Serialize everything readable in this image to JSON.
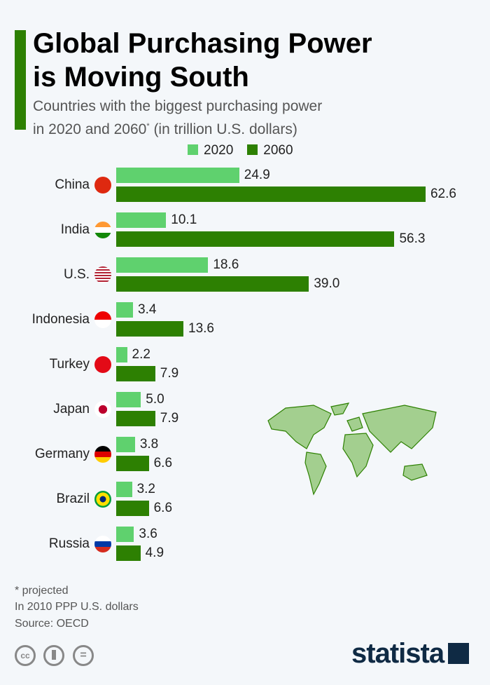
{
  "title_line1": "Global Purchasing Power",
  "title_line2": "is Moving South",
  "subtitle_line1": "Countries with the biggest purchasing power",
  "subtitle_line2a": "in 2020 and 2060",
  "subtitle_sup": "*",
  "subtitle_line2b": " (in trillion U.S. dollars)",
  "colors": {
    "s2020": "#5fd16e",
    "s2060": "#2d8002",
    "accent": "#2d8002"
  },
  "chart_data": {
    "type": "bar",
    "orientation": "horizontal",
    "categories": [
      "China",
      "India",
      "U.S.",
      "Indonesia",
      "Turkey",
      "Japan",
      "Germany",
      "Brazil",
      "Russia"
    ],
    "series": [
      {
        "name": "2020",
        "values": [
          24.9,
          10.1,
          18.6,
          3.4,
          2.2,
          5.0,
          3.8,
          3.2,
          3.6
        ]
      },
      {
        "name": "2060",
        "values": [
          62.6,
          56.3,
          39.0,
          13.6,
          7.9,
          7.9,
          6.6,
          6.6,
          4.9
        ]
      }
    ],
    "value_labels": {
      "2020": [
        "24.9",
        "10.1",
        "18.6",
        "3.4",
        "2.2",
        "5.0",
        "3.8",
        "3.2",
        "3.6"
      ],
      "2060": [
        "62.6",
        "56.3",
        "39.0",
        "13.6",
        "7.9",
        "7.9",
        "6.6",
        "6.6",
        "4.9"
      ]
    },
    "legend": "top-center",
    "xlim": [
      0,
      65
    ]
  },
  "footnotes": {
    "projected": "* projected",
    "ppp": "In 2010 PPP U.S. dollars",
    "source": "Source: OECD"
  },
  "license": {
    "cc": "cc",
    "eq": "="
  },
  "brand": "statista"
}
